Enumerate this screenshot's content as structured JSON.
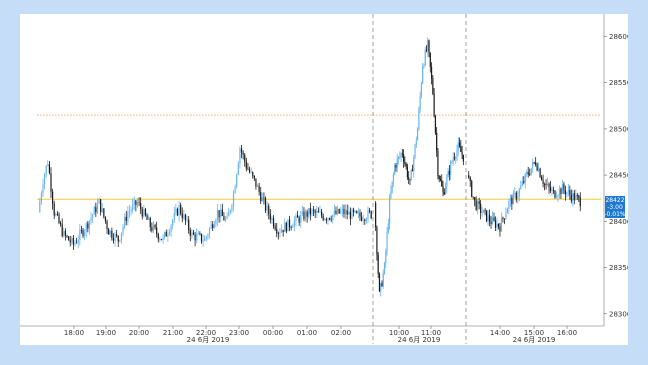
{
  "chart_data": {
    "type": "candlestick",
    "title": "",
    "xlabel": "",
    "ylabel": "",
    "ylim": [
      28290,
      28620
    ],
    "y_ticks": [
      28300,
      28350,
      28400,
      28450,
      28500,
      28550,
      28600
    ],
    "y_tick_labels": [
      "28300",
      "28350",
      "28400",
      "28450",
      "28500",
      "28550",
      "28600"
    ],
    "x_tick_labels": [
      "18:00",
      "19:00",
      "20:00",
      "21:00",
      "22:00",
      "23:00",
      "00:00",
      "01:00",
      "02:00",
      "10:00",
      "11:00",
      "14:00",
      "15:00",
      "16:00"
    ],
    "date_labels": [
      "24 6月 2019",
      "24 6月 2019",
      "24 6月 2019"
    ],
    "grid": false,
    "reference_lines": [
      {
        "value": 28515,
        "color": "#f4a460",
        "style": "dotted"
      },
      {
        "value": 28424,
        "color": "#f0c020",
        "style": "solid"
      }
    ],
    "session_breaks": [
      "02:00-10:00",
      "11:00-14:00"
    ],
    "last_price_readout": [
      "28422",
      "-3.00",
      "-0.01%"
    ],
    "last_price": 28422,
    "colors": {
      "up": "#6ab4f0",
      "down": "#1c1c1c",
      "accent": "#1e78d2"
    },
    "segments": [
      {
        "label": "overnight",
        "anchors": [
          [
            0,
            28410
          ],
          [
            3,
            28445
          ],
          [
            6,
            28465
          ],
          [
            10,
            28410
          ],
          [
            16,
            28385
          ],
          [
            22,
            28375
          ],
          [
            30,
            28395
          ],
          [
            38,
            28420
          ],
          [
            44,
            28390
          ],
          [
            50,
            28380
          ],
          [
            56,
            28410
          ],
          [
            62,
            28420
          ],
          [
            70,
            28395
          ],
          [
            78,
            28380
          ],
          [
            88,
            28415
          ],
          [
            96,
            28385
          ],
          [
            104,
            28380
          ],
          [
            112,
            28410
          ],
          [
            118,
            28400
          ],
          [
            122,
            28430
          ],
          [
            126,
            28480
          ],
          [
            130,
            28460
          ],
          [
            136,
            28440
          ],
          [
            142,
            28415
          ],
          [
            150,
            28390
          ],
          [
            160,
            28400
          ],
          [
            170,
            28410
          ],
          [
            180,
            28405
          ],
          [
            190,
            28410
          ],
          [
            200,
            28405
          ],
          [
            208,
            28408
          ]
        ]
      },
      {
        "label": "morning",
        "anchors": [
          [
            0,
            28420
          ],
          [
            4,
            28320
          ],
          [
            8,
            28350
          ],
          [
            12,
            28420
          ],
          [
            16,
            28460
          ],
          [
            22,
            28475
          ],
          [
            28,
            28440
          ],
          [
            34,
            28500
          ],
          [
            38,
            28570
          ],
          [
            42,
            28590
          ],
          [
            46,
            28540
          ],
          [
            50,
            28455
          ],
          [
            54,
            28430
          ],
          [
            58,
            28450
          ],
          [
            62,
            28470
          ],
          [
            66,
            28480
          ],
          [
            70,
            28470
          ]
        ]
      },
      {
        "label": "afternoon",
        "anchors": [
          [
            0,
            28450
          ],
          [
            5,
            28420
          ],
          [
            10,
            28410
          ],
          [
            16,
            28400
          ],
          [
            22,
            28395
          ],
          [
            28,
            28420
          ],
          [
            34,
            28430
          ],
          [
            40,
            28450
          ],
          [
            46,
            28465
          ],
          [
            52,
            28440
          ],
          [
            58,
            28430
          ],
          [
            64,
            28435
          ],
          [
            70,
            28428
          ],
          [
            76,
            28422
          ]
        ]
      }
    ]
  }
}
